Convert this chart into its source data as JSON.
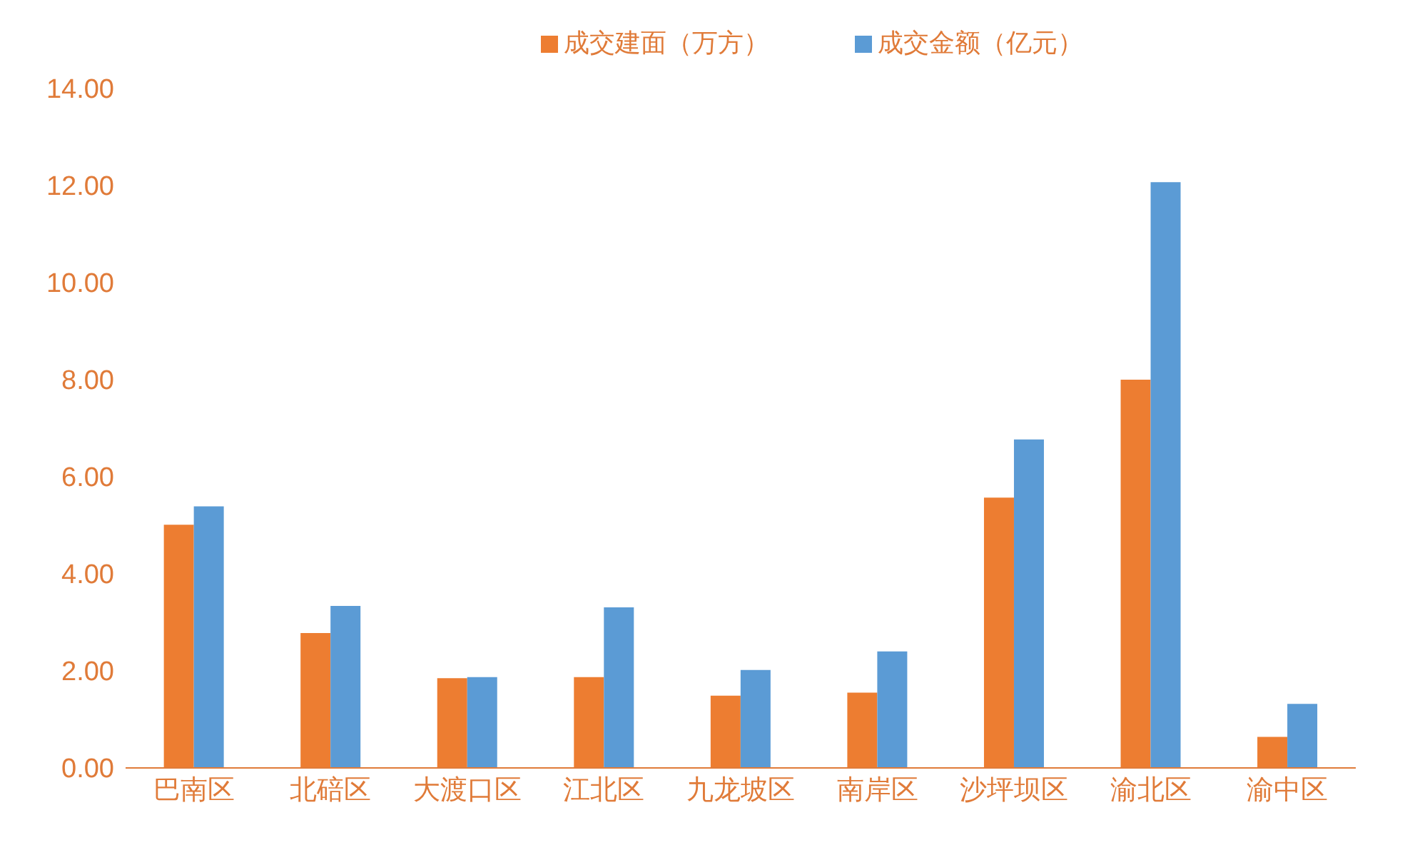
{
  "chart_data": {
    "type": "bar",
    "categories": [
      "巴南区",
      "北碚区",
      "大渡口区",
      "江北区",
      "九龙坡区",
      "南岸区",
      "沙坪坝区",
      "渝北区",
      "渝中区"
    ],
    "series": [
      {
        "name": "成交建面（万方）",
        "color": "#ed7d31",
        "values": [
          5.01,
          2.78,
          1.85,
          1.87,
          1.49,
          1.55,
          5.57,
          8.0,
          0.64
        ]
      },
      {
        "name": "成交金额（亿元）",
        "color": "#5b9bd5",
        "values": [
          5.39,
          3.34,
          1.87,
          3.31,
          2.02,
          2.4,
          6.77,
          12.07,
          1.32
        ]
      }
    ],
    "ylim": [
      0,
      14
    ],
    "yticks": [
      {
        "value": 0,
        "label": "0.00"
      },
      {
        "value": 2,
        "label": "2.00"
      },
      {
        "value": 4,
        "label": "4.00"
      },
      {
        "value": 6,
        "label": "6.00"
      },
      {
        "value": 8,
        "label": "8.00"
      },
      {
        "value": 10,
        "label": "10.00"
      },
      {
        "value": 12,
        "label": "12.00"
      },
      {
        "value": 14,
        "label": "14.00"
      }
    ],
    "grid": false,
    "legend": "top"
  }
}
